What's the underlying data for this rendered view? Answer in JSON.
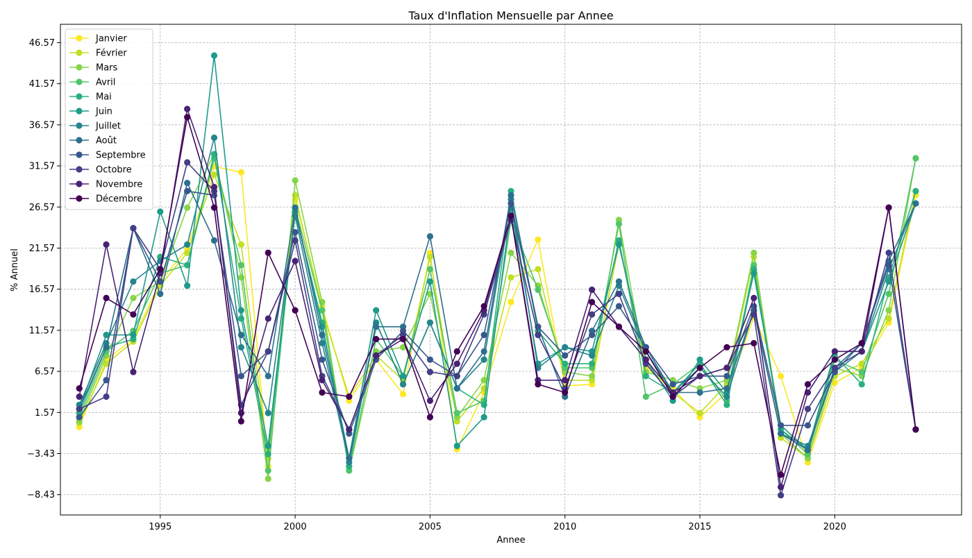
{
  "chart_data": {
    "type": "line",
    "title": "Taux d'Inflation Mensuelle par Annee",
    "xlabel": "Annee",
    "ylabel": "% Annuel",
    "xlim": [
      1991.3,
      2024.7
    ],
    "ylim": [
      -10.9,
      48.8
    ],
    "x_ticks": [
      1995,
      2000,
      2005,
      2010,
      2015,
      2020
    ],
    "y_ticks": [
      -8.43,
      -3.43,
      1.57,
      6.57,
      11.57,
      16.57,
      21.57,
      26.57,
      31.57,
      36.57,
      41.57,
      46.57
    ],
    "grid": true,
    "legend_position": "top-left",
    "x": [
      1992,
      1993,
      1994,
      1995,
      1996,
      1997,
      1998,
      1999,
      2000,
      2001,
      2002,
      2003,
      2004,
      2005,
      2006,
      2007,
      2008,
      2009,
      2010,
      2011,
      2012,
      2013,
      2014,
      2015,
      2016,
      2017,
      2018,
      2019,
      2020,
      2021,
      2022,
      2023
    ],
    "series": [
      {
        "name": "Janvier",
        "color": "#fde725",
        "values": [
          -0.2,
          8.0,
          10.5,
          17.5,
          21.5,
          31.5,
          30.8,
          -5.0,
          27.5,
          14.5,
          3.0,
          8.0,
          3.8,
          21.0,
          -2.9,
          4.0,
          15.0,
          22.6,
          4.8,
          5.0,
          22.2,
          7.0,
          4.5,
          1.0,
          4.0,
          13.2,
          6.0,
          -4.5,
          5.2,
          7.0,
          12.5,
          28.0
        ]
      },
      {
        "name": "Février",
        "color": "#c2df23",
        "values": [
          0.3,
          7.5,
          10.2,
          17.0,
          21.0,
          30.5,
          22.0,
          -4.0,
          28.0,
          14.0,
          3.5,
          8.5,
          5.5,
          20.5,
          0.5,
          4.5,
          18.0,
          19.0,
          5.5,
          5.5,
          22.0,
          7.5,
          4.0,
          1.5,
          5.0,
          20.5,
          -1.5,
          -4.0,
          6.0,
          7.5,
          13.0,
          28.5
        ]
      },
      {
        "name": "Mars",
        "color": "#86d549",
        "values": [
          0.5,
          8.5,
          15.5,
          17.5,
          26.5,
          33.0,
          18.0,
          -6.5,
          29.8,
          15.0,
          -5.5,
          9.0,
          9.5,
          16.0,
          1.0,
          5.5,
          21.0,
          17.0,
          6.5,
          6.0,
          25.0,
          6.5,
          5.5,
          4.5,
          5.5,
          21.0,
          -1.0,
          -4.0,
          7.0,
          6.0,
          14.0,
          32.5
        ]
      },
      {
        "name": "Avril",
        "color": "#52c569",
        "values": [
          1.0,
          9.0,
          11.5,
          18.5,
          19.5,
          32.5,
          19.5,
          -5.5,
          26.5,
          14.0,
          -5.5,
          10.5,
          6.0,
          19.0,
          1.5,
          3.0,
          25.0,
          16.5,
          7.0,
          7.0,
          24.5,
          3.5,
          5.0,
          7.5,
          3.0,
          19.5,
          -0.5,
          -3.5,
          8.0,
          6.5,
          16.0,
          32.5
        ]
      },
      {
        "name": "Mai",
        "color": "#2ab07f",
        "values": [
          1.5,
          9.5,
          10.5,
          20.5,
          19.5,
          33.0,
          13.0,
          -3.5,
          26.0,
          12.5,
          -5.0,
          12.5,
          5.0,
          12.5,
          4.5,
          2.5,
          28.5,
          11.5,
          7.5,
          7.5,
          22.5,
          6.0,
          4.0,
          7.5,
          2.5,
          19.0,
          -0.5,
          -3.0,
          8.5,
          5.0,
          18.0,
          28.5
        ]
      },
      {
        "name": "Juin",
        "color": "#1e9b8a",
        "values": [
          2.0,
          11.0,
          11.0,
          26.0,
          17.0,
          45.0,
          14.0,
          -2.5,
          26.0,
          12.0,
          -4.0,
          14.0,
          6.0,
          17.5,
          -2.5,
          1.0,
          26.5,
          7.5,
          9.5,
          9.0,
          22.0,
          8.0,
          3.0,
          8.0,
          4.0,
          18.5,
          0.0,
          -3.0,
          9.0,
          9.0,
          17.5,
          27.0
        ]
      },
      {
        "name": "Juillet",
        "color": "#25858e",
        "values": [
          2.5,
          10.0,
          17.5,
          20.0,
          22.0,
          35.0,
          9.5,
          1.5,
          25.5,
          10.0,
          -4.5,
          12.5,
          5.0,
          12.5,
          4.5,
          8.0,
          27.5,
          7.0,
          9.5,
          8.5,
          17.0,
          9.0,
          4.0,
          7.0,
          3.5,
          14.0,
          -1.0,
          -2.5,
          6.5,
          9.0,
          19.0,
          27.0
        ]
      },
      {
        "name": "Août",
        "color": "#2d708e",
        "values": [
          2.0,
          9.5,
          24.0,
          16.0,
          29.5,
          22.5,
          11.0,
          6.0,
          26.5,
          11.0,
          -4.0,
          12.0,
          12.0,
          23.0,
          4.5,
          9.0,
          28.0,
          12.0,
          3.5,
          11.5,
          17.5,
          9.5,
          4.0,
          4.0,
          4.5,
          14.0,
          -1.0,
          -3.0,
          7.0,
          10.0,
          20.0,
          27.0
        ]
      },
      {
        "name": "Septembre",
        "color": "#38588c",
        "values": [
          1.0,
          5.5,
          24.0,
          17.5,
          28.5,
          28.0,
          6.0,
          9.0,
          23.5,
          8.0,
          -1.0,
          8.0,
          11.5,
          8.0,
          6.0,
          11.0,
          27.0,
          12.0,
          8.5,
          11.0,
          14.5,
          9.5,
          5.0,
          6.0,
          6.0,
          14.5,
          0.0,
          0.0,
          6.5,
          10.0,
          19.5,
          -0.5
        ]
      },
      {
        "name": "Octobre",
        "color": "#433e85",
        "values": [
          2.0,
          3.5,
          24.0,
          19.0,
          32.0,
          28.5,
          2.5,
          9.0,
          22.5,
          6.0,
          -0.5,
          8.5,
          11.0,
          6.5,
          6.0,
          13.5,
          25.0,
          11.0,
          4.5,
          13.5,
          16.0,
          7.5,
          3.5,
          6.0,
          7.0,
          13.5,
          -8.5,
          2.0,
          7.0,
          9.0,
          21.0,
          -0.5
        ]
      },
      {
        "name": "Novembre",
        "color": "#482374",
        "values": [
          3.5,
          22.0,
          6.5,
          18.5,
          38.5,
          29.0,
          1.5,
          13.0,
          20.0,
          5.5,
          -0.5,
          8.5,
          10.5,
          3.0,
          7.5,
          14.0,
          25.5,
          5.5,
          5.5,
          16.5,
          12.0,
          8.0,
          4.0,
          6.0,
          7.0,
          15.5,
          -7.5,
          4.0,
          9.0,
          9.0,
          26.5,
          -0.5
        ]
      },
      {
        "name": "Décembre",
        "color": "#440154",
        "values": [
          4.5,
          15.5,
          13.5,
          19.0,
          37.5,
          26.5,
          0.5,
          21.0,
          14.0,
          4.0,
          3.5,
          10.5,
          10.5,
          1.0,
          9.0,
          14.5,
          25.5,
          5.0,
          4.0,
          15.0,
          12.0,
          9.0,
          3.5,
          7.0,
          9.5,
          10.0,
          -6.0,
          5.0,
          8.0,
          10.0,
          26.5,
          -0.5
        ]
      }
    ]
  }
}
